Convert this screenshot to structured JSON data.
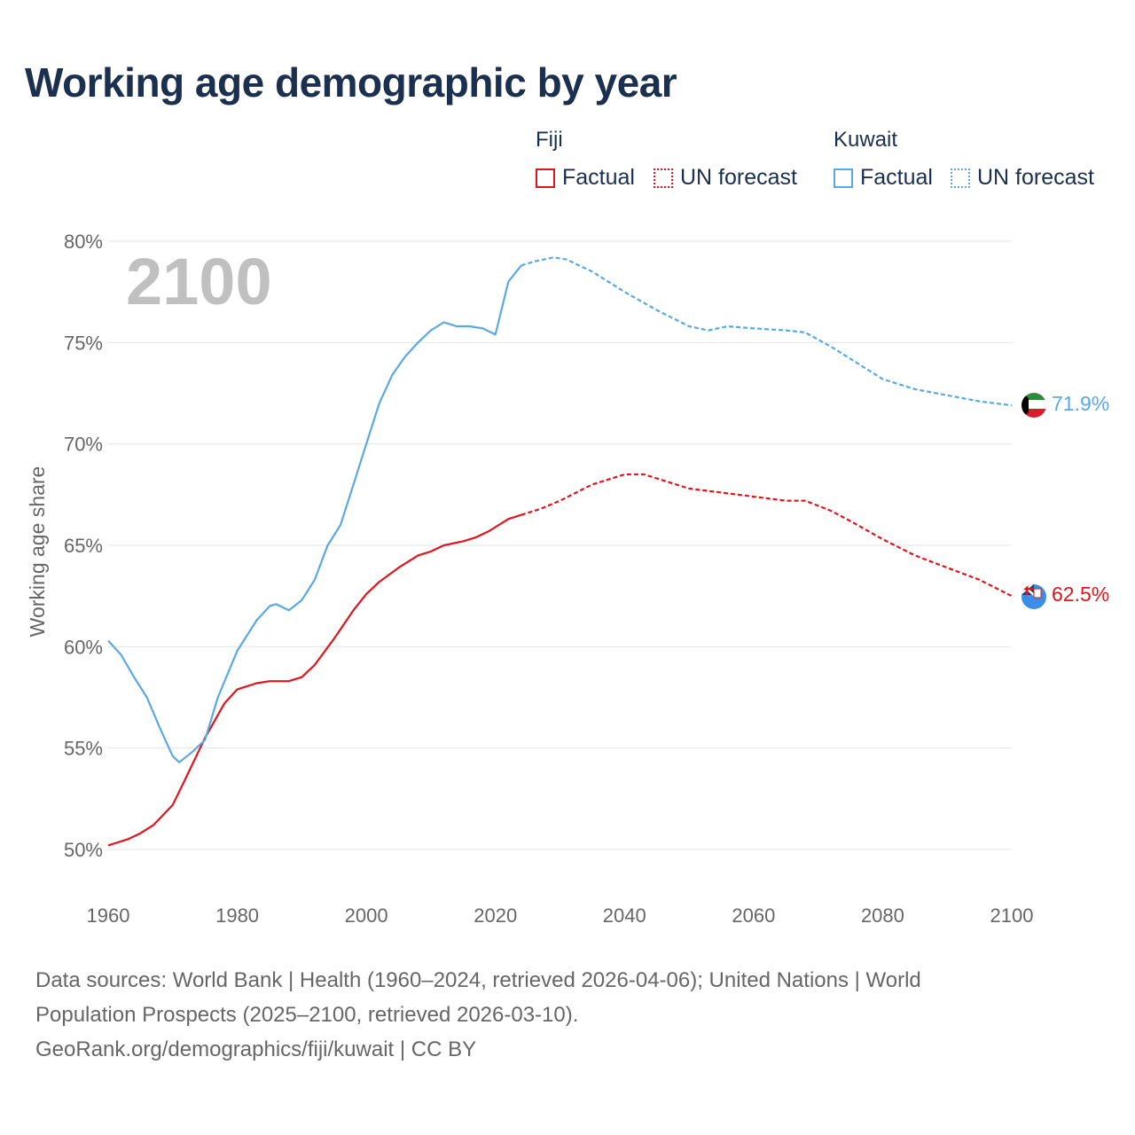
{
  "title": "Working age demographic by year",
  "legend": {
    "groups": [
      {
        "name": "Fiji",
        "color": "#e3141b",
        "items": [
          {
            "label": "Factual",
            "style": "solid"
          },
          {
            "label": "UN forecast",
            "style": "dotted"
          }
        ]
      },
      {
        "name": "Kuwait",
        "color": "#5aa8e6",
        "items": [
          {
            "label": "Factual",
            "style": "solid"
          },
          {
            "label": "UN forecast",
            "style": "dotted"
          }
        ]
      }
    ]
  },
  "footer": {
    "line1": "Data sources: World Bank | Health (1960–2024, retrieved 2026-04-06); United Nations | World",
    "line2": "Population Prospects (2025–2100, retrieved 2026-03-10).",
    "line3": "GeoRank.org/demographics/fiji/kuwait | CC BY"
  },
  "chart_data": {
    "type": "line",
    "title": "Working age demographic by year",
    "year_label": "2100",
    "xlabel": "",
    "ylabel": "Working age share",
    "xlim": [
      1960,
      2100
    ],
    "ylim": [
      50,
      80
    ],
    "x_ticks": [
      1960,
      1980,
      2000,
      2020,
      2040,
      2060,
      2080,
      2100
    ],
    "x_tick_labels": [
      "1960",
      "1980",
      "2000",
      "2020",
      "2040",
      "2060",
      "2080",
      "2100"
    ],
    "y_ticks": [
      50,
      55,
      60,
      65,
      70,
      75,
      80
    ],
    "y_tick_labels": [
      "50%",
      "55%",
      "60%",
      "65%",
      "70%",
      "75%",
      "80%"
    ],
    "grid": true,
    "series": [
      {
        "name": "Fiji",
        "color": "#e3141b",
        "end_label": "62.5%",
        "factual": [
          [
            1960,
            50.2
          ],
          [
            1963,
            50.5
          ],
          [
            1965,
            50.8
          ],
          [
            1967,
            51.2
          ],
          [
            1970,
            52.2
          ],
          [
            1972,
            53.5
          ],
          [
            1975,
            55.5
          ],
          [
            1978,
            57.2
          ],
          [
            1980,
            57.9
          ],
          [
            1983,
            58.2
          ],
          [
            1985,
            58.3
          ],
          [
            1988,
            58.3
          ],
          [
            1990,
            58.5
          ],
          [
            1992,
            59.1
          ],
          [
            1995,
            60.4
          ],
          [
            1998,
            61.8
          ],
          [
            2000,
            62.6
          ],
          [
            2002,
            63.2
          ],
          [
            2005,
            63.9
          ],
          [
            2008,
            64.5
          ],
          [
            2010,
            64.7
          ],
          [
            2012,
            65.0
          ],
          [
            2015,
            65.2
          ],
          [
            2017,
            65.4
          ],
          [
            2019,
            65.7
          ],
          [
            2022,
            66.3
          ],
          [
            2024,
            66.5
          ]
        ],
        "forecast": [
          [
            2024,
            66.5
          ],
          [
            2027,
            66.8
          ],
          [
            2030,
            67.2
          ],
          [
            2035,
            68.0
          ],
          [
            2040,
            68.5
          ],
          [
            2043,
            68.5
          ],
          [
            2045,
            68.3
          ],
          [
            2050,
            67.8
          ],
          [
            2055,
            67.6
          ],
          [
            2060,
            67.4
          ],
          [
            2065,
            67.2
          ],
          [
            2068,
            67.2
          ],
          [
            2072,
            66.7
          ],
          [
            2075,
            66.2
          ],
          [
            2080,
            65.3
          ],
          [
            2085,
            64.5
          ],
          [
            2090,
            63.9
          ],
          [
            2095,
            63.3
          ],
          [
            2100,
            62.5
          ]
        ]
      },
      {
        "name": "Kuwait",
        "color": "#5aa8e6",
        "end_label": "71.9%",
        "factual": [
          [
            1960,
            60.3
          ],
          [
            1962,
            59.6
          ],
          [
            1964,
            58.5
          ],
          [
            1966,
            57.5
          ],
          [
            1968,
            56.0
          ],
          [
            1970,
            54.6
          ],
          [
            1971,
            54.3
          ],
          [
            1973,
            54.8
          ],
          [
            1975,
            55.4
          ],
          [
            1977,
            57.5
          ],
          [
            1980,
            59.8
          ],
          [
            1983,
            61.3
          ],
          [
            1985,
            62.0
          ],
          [
            1986,
            62.1
          ],
          [
            1988,
            61.8
          ],
          [
            1990,
            62.3
          ],
          [
            1992,
            63.3
          ],
          [
            1994,
            65.0
          ],
          [
            1996,
            66.0
          ],
          [
            1998,
            68.0
          ],
          [
            2000,
            70.0
          ],
          [
            2002,
            72.0
          ],
          [
            2004,
            73.4
          ],
          [
            2006,
            74.3
          ],
          [
            2008,
            75.0
          ],
          [
            2010,
            75.6
          ],
          [
            2012,
            76.0
          ],
          [
            2014,
            75.8
          ],
          [
            2016,
            75.8
          ],
          [
            2018,
            75.7
          ],
          [
            2020,
            75.4
          ],
          [
            2022,
            78.0
          ],
          [
            2024,
            78.8
          ]
        ],
        "forecast": [
          [
            2024,
            78.8
          ],
          [
            2026,
            79.0
          ],
          [
            2029,
            79.2
          ],
          [
            2031,
            79.1
          ],
          [
            2035,
            78.5
          ],
          [
            2040,
            77.5
          ],
          [
            2045,
            76.6
          ],
          [
            2050,
            75.8
          ],
          [
            2053,
            75.6
          ],
          [
            2056,
            75.8
          ],
          [
            2060,
            75.7
          ],
          [
            2065,
            75.6
          ],
          [
            2068,
            75.5
          ],
          [
            2072,
            74.8
          ],
          [
            2076,
            74.0
          ],
          [
            2080,
            73.2
          ],
          [
            2085,
            72.7
          ],
          [
            2090,
            72.4
          ],
          [
            2095,
            72.1
          ],
          [
            2100,
            71.9
          ]
        ]
      }
    ]
  }
}
